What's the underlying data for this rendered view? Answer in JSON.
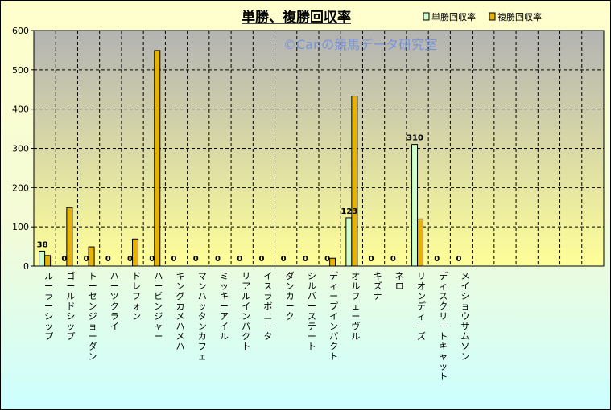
{
  "chart_data": {
    "type": "bar",
    "title": "単勝、複勝回収率",
    "watermark": "©Canの競馬データ研究室",
    "ylim": [
      0,
      600
    ],
    "yticks": [
      0,
      100,
      200,
      300,
      400,
      500,
      600
    ],
    "categories": [
      "ルーラーシップ",
      "ゴールドシップ",
      "トーセンジョーダン",
      "ハーツクライ",
      "ドレフォン",
      "ハービンジャー",
      "キングカメハメハ",
      "マンハッタンカフェ",
      "ミッキーアイル",
      "リアルインパクト",
      "イスラボニータ",
      "ダンカーク",
      "シルバーステート",
      "ディープインパクト",
      "オルフェーヴル",
      "キズナ",
      "ネロ",
      "リオンディーズ",
      "ディスクリートキャット",
      "メイショウサムソン"
    ],
    "series": [
      {
        "name": "単勝回収率",
        "color": "#ccffcc",
        "values": [
          38,
          0,
          0,
          0,
          0,
          0,
          0,
          0,
          0,
          0,
          0,
          0,
          0,
          0,
          123,
          0,
          0,
          310,
          0,
          0
        ]
      },
      {
        "name": "複勝回収率",
        "color": "#e6b400",
        "values": [
          27,
          149,
          49,
          0,
          69,
          549,
          0,
          0,
          0,
          0,
          0,
          0,
          0,
          20,
          433,
          0,
          0,
          120,
          0,
          0
        ]
      }
    ],
    "data_labels": [
      "38",
      "0",
      "0",
      "0",
      "0",
      "0",
      "0",
      "0",
      "0",
      "0",
      "0",
      "0",
      "0",
      "0",
      "123",
      "0",
      "0",
      "310",
      "0",
      "0"
    ],
    "grid": true,
    "legend": "top-right"
  }
}
